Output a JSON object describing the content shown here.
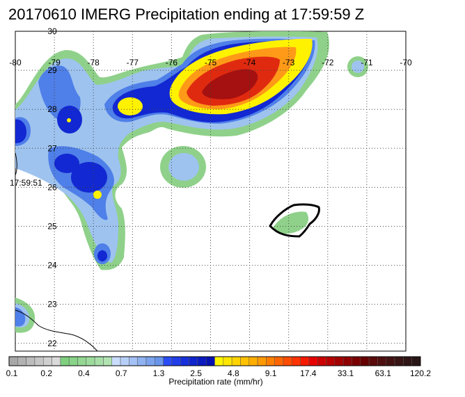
{
  "title": "20170610 IMERG Precipitation ending at 17:59:59 Z",
  "map": {
    "lon_labels": [
      "-80",
      "-79",
      "-78",
      "-77",
      "-76",
      "-75",
      "-74",
      "-73",
      "-72",
      "-71",
      "-70"
    ],
    "lat_labels": [
      "30",
      "29",
      "28",
      "27",
      "26",
      "25",
      "24",
      "23",
      "22"
    ],
    "lon_range": [
      -80,
      -70
    ],
    "lat_range": [
      21.8,
      30
    ],
    "grid": true,
    "swath_time_label": "17:59:51",
    "precip_colors": {
      "light_green": "#8fd18a",
      "light_blue": "#9ec3ef",
      "blue": "#4f7fe8",
      "dark_blue": "#1228d2",
      "yellow": "#fff200",
      "orange": "#ff9a18",
      "red": "#e02a10",
      "dark_red": "#a51010"
    }
  },
  "colorbar": {
    "label": "Precipitation rate (mm/hr)",
    "tick_labels": [
      "0.1",
      "0.2",
      "0.4",
      "0.7",
      "1.3",
      "2.5",
      "4.8",
      "9.1",
      "17.4",
      "33.1",
      "63.1",
      "120.2"
    ],
    "colors": [
      "#a8a8a8",
      "#b2b2b2",
      "#bcbcbc",
      "#c6c6c6",
      "#d0d0d0",
      "#dadada",
      "#7fcf7f",
      "#88d388",
      "#93d793",
      "#9ddb9d",
      "#a8dfa8",
      "#b2e3b2",
      "#c9dcfb",
      "#b7cff8",
      "#a3c1f4",
      "#8fb2f1",
      "#7ca4ee",
      "#6996ea",
      "#2a4cf5",
      "#213ee8",
      "#1830da",
      "#1024cd",
      "#0a1abf",
      "#0512b1",
      "#fff500",
      "#ffe600",
      "#ffd400",
      "#ffc200",
      "#ffae00",
      "#ff9a00",
      "#ff7f00",
      "#ff6600",
      "#ff4d00",
      "#ff3300",
      "#f51a00",
      "#e60000",
      "#cc0000",
      "#b80000",
      "#a30000",
      "#8f0000",
      "#7a0000",
      "#660000",
      "#5a0a0a",
      "#4d0f0f",
      "#421212",
      "#381414",
      "#2f1515",
      "#281616"
    ]
  }
}
